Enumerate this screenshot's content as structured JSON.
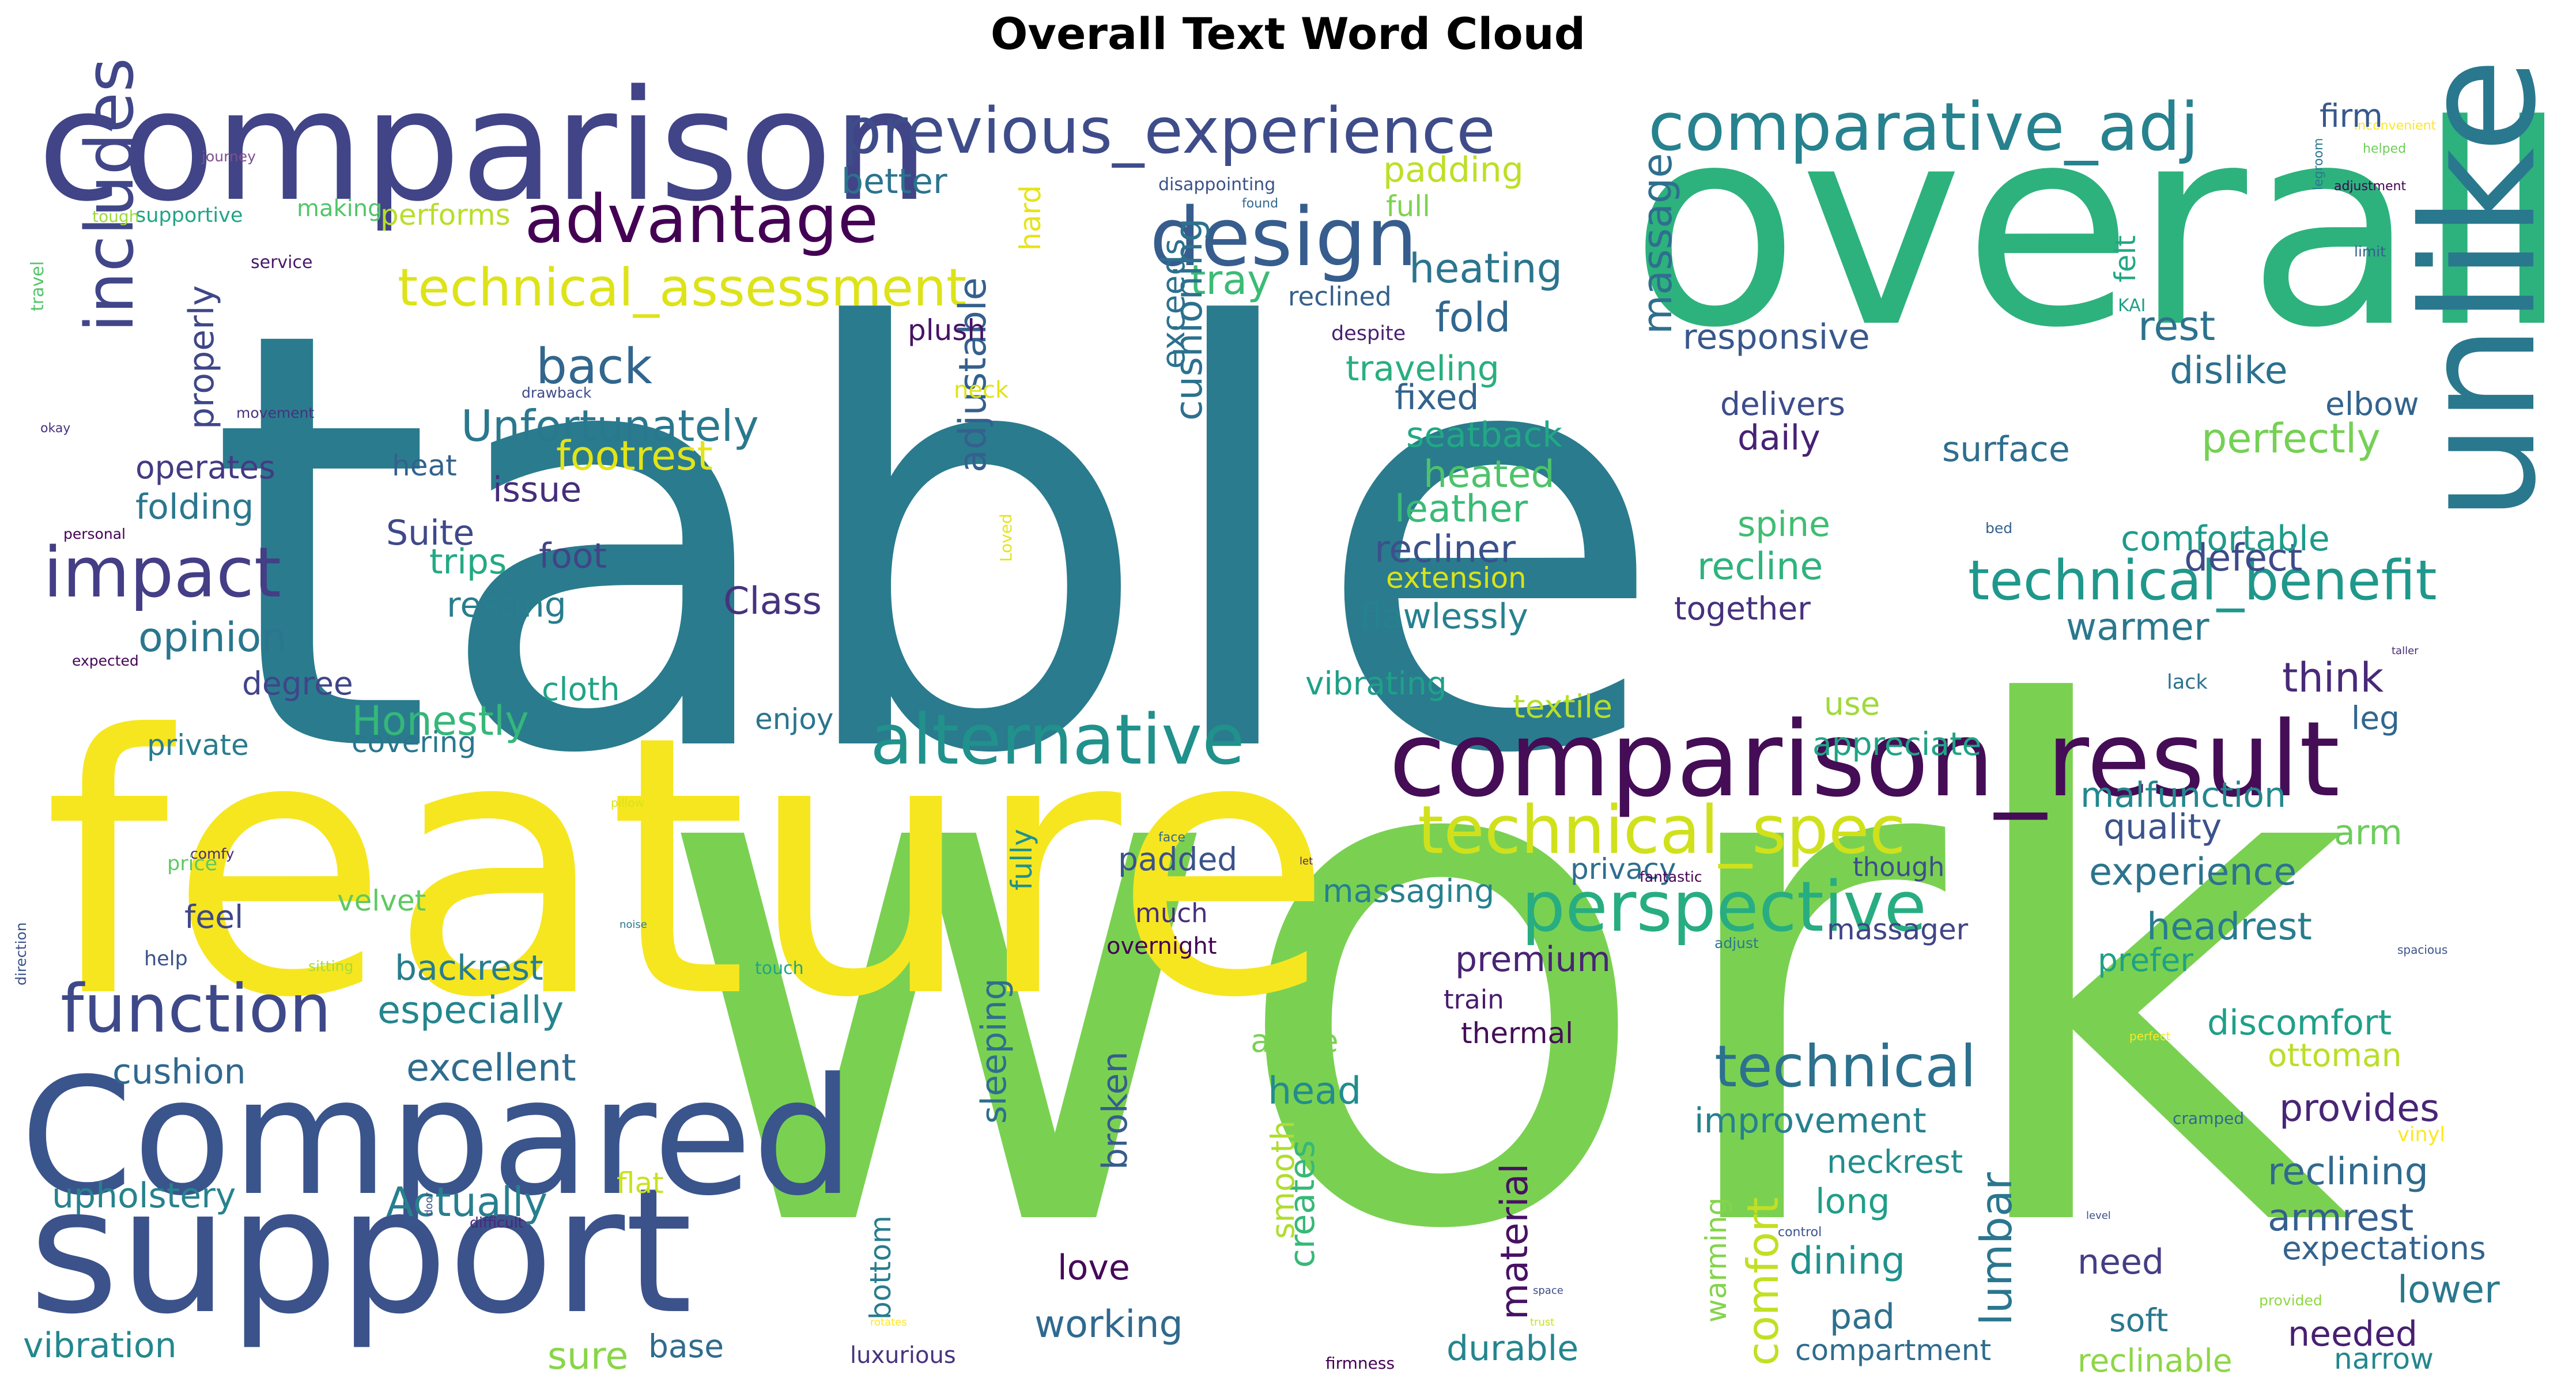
{
  "title": "Overall Text Word Cloud",
  "words": [
    {
      "text": "table",
      "color": "#2a7b8e"
    },
    {
      "text": "work",
      "color": "#7ad151"
    },
    {
      "text": "feature",
      "color": "#f6e620"
    },
    {
      "text": "overall",
      "color": "#2db27d"
    },
    {
      "text": "comparison",
      "color": "#414487"
    },
    {
      "text": "unlike",
      "color": "#2a788e"
    },
    {
      "text": "support",
      "color": "#3b528b"
    },
    {
      "text": "Compared",
      "color": "#3a548c"
    },
    {
      "text": "comparison_result",
      "color": "#440d56"
    },
    {
      "text": "previous_experience",
      "color": "#3e4c8a"
    },
    {
      "text": "comparative_adj",
      "color": "#26828e"
    },
    {
      "text": "design",
      "color": "#365d8d"
    },
    {
      "text": "alternative",
      "color": "#21918c"
    },
    {
      "text": "advantage",
      "color": "#440154"
    },
    {
      "text": "technical_assessment",
      "color": "#dde318"
    },
    {
      "text": "perspective",
      "color": "#27ad81"
    },
    {
      "text": "technical_spec",
      "color": "#d0e11c"
    },
    {
      "text": "technical_benefit",
      "color": "#1f988b"
    },
    {
      "text": "function",
      "color": "#3e4989"
    },
    {
      "text": "impact",
      "color": "#433e85"
    },
    {
      "text": "includes",
      "color": "#404688"
    },
    {
      "text": "technical",
      "color": "#2c718e"
    },
    {
      "text": "back",
      "color": "#31668e"
    },
    {
      "text": "Unfortunately",
      "color": "#2a788e"
    },
    {
      "text": "heating",
      "color": "#2b758e"
    },
    {
      "text": "fold",
      "color": "#31678e"
    },
    {
      "text": "tray",
      "color": "#3bbb75"
    },
    {
      "text": "footrest",
      "color": "#e2e418"
    },
    {
      "text": "Class",
      "color": "#46337f"
    },
    {
      "text": "cushioning",
      "color": "#2c718e"
    },
    {
      "text": "adjustable",
      "color": "#35608d"
    },
    {
      "text": "massage",
      "color": "#2e6f8e"
    },
    {
      "text": "rest",
      "color": "#2c728e"
    },
    {
      "text": "dislike",
      "color": "#2d708e"
    },
    {
      "text": "perfectly",
      "color": "#75d054"
    },
    {
      "text": "defect",
      "color": "#3e4a89"
    },
    {
      "text": "comfortable",
      "color": "#1f9a8a"
    },
    {
      "text": "Honestly",
      "color": "#35b779"
    },
    {
      "text": "opinion",
      "color": "#2a768e"
    },
    {
      "text": "Suite",
      "color": "#3f4889"
    },
    {
      "text": "foot",
      "color": "#414487"
    },
    {
      "text": "resting",
      "color": "#287d8e"
    },
    {
      "text": "trips",
      "color": "#23a983"
    },
    {
      "text": "issue",
      "color": "#472d7b"
    },
    {
      "text": "recliner",
      "color": "#3b518b"
    },
    {
      "text": "leather",
      "color": "#3aba76"
    },
    {
      "text": "heated",
      "color": "#4ec36b"
    },
    {
      "text": "seatback",
      "color": "#22a884"
    },
    {
      "text": "fixed",
      "color": "#33628d"
    },
    {
      "text": "traveling",
      "color": "#29af7f"
    },
    {
      "text": "responsive",
      "color": "#38588c"
    },
    {
      "text": "delivers",
      "color": "#3d4d8a"
    },
    {
      "text": "daily",
      "color": "#482173"
    },
    {
      "text": "surface",
      "color": "#2e6e8e"
    },
    {
      "text": "spine",
      "color": "#40bd72"
    },
    {
      "text": "recline",
      "color": "#2eb37c"
    },
    {
      "text": "together",
      "color": "#46307e"
    },
    {
      "text": "warmer",
      "color": "#2a788e"
    },
    {
      "text": "think",
      "color": "#482979"
    },
    {
      "text": "elbow",
      "color": "#33638d"
    },
    {
      "text": "leg",
      "color": "#31668e"
    },
    {
      "text": "flawlessly",
      "color": "#26818e"
    },
    {
      "text": "extension",
      "color": "#dae319"
    },
    {
      "text": "vibrating",
      "color": "#1fa088"
    },
    {
      "text": "textile",
      "color": "#b5de2b"
    },
    {
      "text": "use",
      "color": "#a0da39"
    },
    {
      "text": "appreciate",
      "color": "#20a386"
    },
    {
      "text": "malfunction",
      "color": "#24878e"
    },
    {
      "text": "quality",
      "color": "#3b528b"
    },
    {
      "text": "arm",
      "color": "#6ccd5a"
    },
    {
      "text": "experience",
      "color": "#2c738e"
    },
    {
      "text": "headrest",
      "color": "#287c8e"
    },
    {
      "text": "prefer",
      "color": "#1fa187"
    },
    {
      "text": "discomfort",
      "color": "#1f9f88"
    },
    {
      "text": "ottoman",
      "color": "#bade28"
    },
    {
      "text": "provides",
      "color": "#482576"
    },
    {
      "text": "reclining",
      "color": "#306a8e"
    },
    {
      "text": "armrest",
      "color": "#355f8d"
    },
    {
      "text": "expectations",
      "color": "#33638d"
    },
    {
      "text": "lower",
      "color": "#2a788e"
    },
    {
      "text": "needed",
      "color": "#481f70"
    },
    {
      "text": "narrow",
      "color": "#24878e"
    },
    {
      "text": "reclinable",
      "color": "#8ed645"
    },
    {
      "text": "soft",
      "color": "#2a788e"
    },
    {
      "text": "need",
      "color": "#433e85"
    },
    {
      "text": "compartment",
      "color": "#2f6c8e"
    },
    {
      "text": "pad",
      "color": "#2d708e"
    },
    {
      "text": "dining",
      "color": "#21918c"
    },
    {
      "text": "long",
      "color": "#1f9e89"
    },
    {
      "text": "neckrest",
      "color": "#228d8d"
    },
    {
      "text": "improvement",
      "color": "#27808e"
    },
    {
      "text": "comfort",
      "color": "#c2df23"
    },
    {
      "text": "warming",
      "color": "#84d44b"
    },
    {
      "text": "lumbar",
      "color": "#2a768e"
    },
    {
      "text": "massager",
      "color": "#404588"
    },
    {
      "text": "though",
      "color": "#3d4e8a"
    },
    {
      "text": "privacy",
      "color": "#2e6e8e"
    },
    {
      "text": "premium",
      "color": "#482475"
    },
    {
      "text": "thermal",
      "color": "#440f57"
    },
    {
      "text": "train",
      "color": "#481b6d"
    },
    {
      "text": "material",
      "color": "#471164"
    },
    {
      "text": "durable",
      "color": "#25858e"
    },
    {
      "text": "working",
      "color": "#30698e"
    },
    {
      "text": "love",
      "color": "#46075a"
    },
    {
      "text": "creates",
      "color": "#37b878"
    },
    {
      "text": "smooth",
      "color": "#b0dd2f"
    },
    {
      "text": "head",
      "color": "#228c8d"
    },
    {
      "text": "angle",
      "color": "#7ad151"
    },
    {
      "text": "massaging",
      "color": "#27808e"
    },
    {
      "text": "broken",
      "color": "#365c8d"
    },
    {
      "text": "sleeping",
      "color": "#2e6f8e"
    },
    {
      "text": "fully",
      "color": "#21918c"
    },
    {
      "text": "padded",
      "color": "#3a538b"
    },
    {
      "text": "much",
      "color": "#472e7c"
    },
    {
      "text": "overnight",
      "color": "#440154"
    },
    {
      "text": "bottom",
      "color": "#287c8e"
    },
    {
      "text": "luxurious",
      "color": "#46337f"
    },
    {
      "text": "base",
      "color": "#2f6b8e"
    },
    {
      "text": "sure",
      "color": "#89d548"
    },
    {
      "text": "vibration",
      "color": "#24878e"
    },
    {
      "text": "flat",
      "color": "#cae11f"
    },
    {
      "text": "upholstery",
      "color": "#26828e"
    },
    {
      "text": "Actually",
      "color": "#277f8e"
    },
    {
      "text": "backrest",
      "color": "#287d8e"
    },
    {
      "text": "especially",
      "color": "#25858e"
    },
    {
      "text": "excellent",
      "color": "#2f6c8e"
    },
    {
      "text": "cushion",
      "color": "#31688e"
    },
    {
      "text": "feel",
      "color": "#3f4788"
    },
    {
      "text": "velvet",
      "color": "#5ec962"
    },
    {
      "text": "covering",
      "color": "#2a768e"
    },
    {
      "text": "private",
      "color": "#287c8e"
    },
    {
      "text": "enjoy",
      "color": "#2b748e"
    },
    {
      "text": "degree",
      "color": "#404588"
    },
    {
      "text": "cloth",
      "color": "#20a386"
    },
    {
      "text": "folding",
      "color": "#2a778e"
    },
    {
      "text": "operates",
      "color": "#443a83"
    },
    {
      "text": "heat",
      "color": "#33628d"
    },
    {
      "text": "properly",
      "color": "#3f4788"
    },
    {
      "text": "better",
      "color": "#2c738e"
    },
    {
      "text": "hard",
      "color": "#e5e419"
    },
    {
      "text": "exceeds",
      "color": "#2d708e"
    },
    {
      "text": "plush",
      "color": "#471365"
    },
    {
      "text": "neck",
      "color": "#dfe318"
    },
    {
      "text": "padding",
      "color": "#bddf26"
    },
    {
      "text": "full",
      "color": "#7fd34e"
    },
    {
      "text": "reclined",
      "color": "#34608d"
    },
    {
      "text": "despite",
      "color": "#482071"
    },
    {
      "text": "performs",
      "color": "#b8de29"
    },
    {
      "text": "making",
      "color": "#52c569"
    },
    {
      "text": "supportive",
      "color": "#20a486"
    },
    {
      "text": "tough",
      "color": "#9dd93b"
    },
    {
      "text": "journey",
      "color": "#7e4e90"
    },
    {
      "text": "travel",
      "color": "#52c569"
    },
    {
      "text": "service",
      "color": "#481769"
    },
    {
      "text": "movement",
      "color": "#46327e"
    },
    {
      "text": "drawback",
      "color": "#3e4c8a"
    },
    {
      "text": "okay",
      "color": "#46327e"
    },
    {
      "text": "personal",
      "color": "#440154"
    },
    {
      "text": "Loved",
      "color": "#e5e419"
    },
    {
      "text": "expected",
      "color": "#450457"
    },
    {
      "text": "disappointing",
      "color": "#3b528b"
    },
    {
      "text": "found",
      "color": "#31688e"
    },
    {
      "text": "legroom",
      "color": "#2a788e"
    },
    {
      "text": "inconvenient",
      "color": "#fde725"
    },
    {
      "text": "helped",
      "color": "#6ece58"
    },
    {
      "text": "adjustment",
      "color": "#440154"
    },
    {
      "text": "limit",
      "color": "#355f8d"
    },
    {
      "text": "firm",
      "color": "#38588c"
    },
    {
      "text": "felt",
      "color": "#22a884"
    },
    {
      "text": "KAI",
      "color": "#1f9e89"
    },
    {
      "text": "bed",
      "color": "#34618d"
    },
    {
      "text": "lack",
      "color": "#2c728e"
    },
    {
      "text": "taller",
      "color": "#482878"
    },
    {
      "text": "comfy",
      "color": "#482878"
    },
    {
      "text": "price",
      "color": "#5ec962"
    },
    {
      "text": "help",
      "color": "#3b528b"
    },
    {
      "text": "sitting",
      "color": "#a5db36"
    },
    {
      "text": "direction",
      "color": "#3b528b"
    },
    {
      "text": "noise",
      "color": "#2a788e"
    },
    {
      "text": "touch",
      "color": "#20a486"
    },
    {
      "text": "pillow",
      "color": "#d8e219"
    },
    {
      "text": "face",
      "color": "#31688e"
    },
    {
      "text": "let",
      "color": "#482878"
    },
    {
      "text": "sleep",
      "color": "#7ad151"
    },
    {
      "text": "fantastic",
      "color": "#440154"
    },
    {
      "text": "adjust",
      "color": "#2a788e"
    },
    {
      "text": "spacious",
      "color": "#3b528b"
    },
    {
      "text": "perfect",
      "color": "#fde725"
    },
    {
      "text": "cramped",
      "color": "#31688e"
    },
    {
      "text": "vinyl",
      "color": "#fde725"
    },
    {
      "text": "provided",
      "color": "#8fd744"
    },
    {
      "text": "trust",
      "color": "#c8e020"
    },
    {
      "text": "space",
      "color": "#3e4a89"
    },
    {
      "text": "control",
      "color": "#3b528b"
    },
    {
      "text": "level",
      "color": "#3b528b"
    },
    {
      "text": "firmness",
      "color": "#440154"
    },
    {
      "text": "rotates",
      "color": "#fde725"
    },
    {
      "text": "difficult",
      "color": "#482878"
    },
    {
      "text": "door",
      "color": "#3b528b"
    }
  ]
}
